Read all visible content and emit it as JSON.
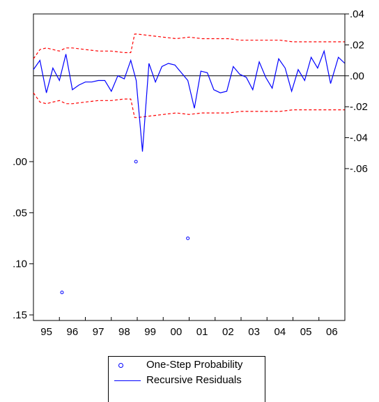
{
  "colors": {
    "residuals": "#0000ff",
    "bands": "#ff0000",
    "probability": "#0000ff",
    "zero_line": "#000000"
  },
  "legend": {
    "probability_label": "One-Step Probability",
    "residuals_label": "Recursive Residuals"
  },
  "chart_data": {
    "type": "line",
    "x_ticks": [
      "95",
      "96",
      "97",
      "98",
      "99",
      "00",
      "01",
      "02",
      "03",
      "04",
      "05",
      "06"
    ],
    "x_range": [
      1995.0,
      2007.0
    ],
    "right_axis": {
      "ticks": [
        ".04",
        ".02",
        ".00",
        "-.02",
        "-.04",
        "-.06"
      ],
      "values": [
        0.04,
        0.02,
        0.0,
        -0.02,
        -0.04,
        -0.06
      ],
      "range": [
        -0.06,
        0.04
      ]
    },
    "left_axis": {
      "ticks": [
        ".00",
        ".05",
        ".10",
        ".15"
      ],
      "values": [
        0.0,
        0.05,
        0.1,
        0.15
      ],
      "range": [
        0.0,
        0.15
      ]
    },
    "series": [
      {
        "name": "Recursive Residuals",
        "axis": "right",
        "style": "solid",
        "x": [
          1995.0,
          1995.25,
          1995.5,
          1995.75,
          1996.0,
          1996.25,
          1996.5,
          1996.75,
          1997.0,
          1997.25,
          1997.5,
          1997.75,
          1998.0,
          1998.25,
          1998.5,
          1998.75,
          1998.96,
          1999.2,
          1999.45,
          1999.7,
          1999.95,
          2000.2,
          2000.45,
          2000.7,
          2000.95,
          2001.2,
          2001.45,
          2001.7,
          2001.95,
          2002.2,
          2002.45,
          2002.7,
          2002.95,
          2003.2,
          2003.45,
          2003.7,
          2003.95,
          2004.2,
          2004.45,
          2004.7,
          2004.95,
          2005.2,
          2005.45,
          2005.7,
          2005.95,
          2006.2,
          2006.45,
          2006.75,
          2007.0
        ],
        "values": [
          0.004,
          0.01,
          -0.011,
          0.005,
          -0.003,
          0.014,
          -0.009,
          -0.006,
          -0.004,
          -0.004,
          -0.003,
          -0.003,
          -0.01,
          0.0,
          -0.002,
          0.01,
          -0.003,
          -0.049,
          0.008,
          -0.004,
          0.006,
          0.008,
          0.007,
          0.002,
          -0.003,
          -0.021,
          0.003,
          0.002,
          -0.009,
          -0.011,
          -0.01,
          0.006,
          0.001,
          -0.001,
          -0.009,
          0.009,
          -0.001,
          -0.008,
          0.011,
          0.005,
          -0.01,
          0.004,
          -0.003,
          0.012,
          0.005,
          0.016,
          -0.005,
          0.012,
          0.008
        ]
      },
      {
        "name": "",
        "axis": "right",
        "style": "dashed-band-upper",
        "x": [
          1995.0,
          1995.25,
          1995.5,
          1995.75,
          1996.0,
          1996.25,
          1996.5,
          1997.0,
          1997.5,
          1998.0,
          1998.5,
          1998.75,
          1998.9,
          1999.0,
          1999.5,
          2000.0,
          2000.5,
          2001.0,
          2001.5,
          2002.0,
          2002.5,
          2003.0,
          2003.5,
          2004.0,
          2004.5,
          2005.0,
          2005.5,
          2006.0,
          2006.5,
          2007.0
        ],
        "values": [
          0.011,
          0.017,
          0.018,
          0.017,
          0.016,
          0.018,
          0.018,
          0.017,
          0.016,
          0.016,
          0.015,
          0.015,
          0.027,
          0.027,
          0.026,
          0.025,
          0.024,
          0.025,
          0.024,
          0.024,
          0.024,
          0.023,
          0.023,
          0.023,
          0.023,
          0.022,
          0.022,
          0.022,
          0.022,
          0.022
        ]
      },
      {
        "name": "",
        "axis": "right",
        "style": "dashed-band-lower",
        "x": [
          1995.0,
          1995.25,
          1995.5,
          1995.75,
          1996.0,
          1996.25,
          1996.5,
          1997.0,
          1997.5,
          1998.0,
          1998.5,
          1998.75,
          1998.9,
          1999.0,
          1999.5,
          2000.0,
          2000.5,
          2001.0,
          2001.5,
          2002.0,
          2002.5,
          2003.0,
          2003.5,
          2004.0,
          2004.5,
          2005.0,
          2005.5,
          2006.0,
          2006.5,
          2007.0
        ],
        "values": [
          -0.011,
          -0.017,
          -0.018,
          -0.017,
          -0.016,
          -0.018,
          -0.018,
          -0.017,
          -0.016,
          -0.016,
          -0.015,
          -0.015,
          -0.027,
          -0.027,
          -0.026,
          -0.025,
          -0.024,
          -0.025,
          -0.024,
          -0.024,
          -0.024,
          -0.023,
          -0.023,
          -0.023,
          -0.023,
          -0.022,
          -0.022,
          -0.022,
          -0.022,
          -0.022
        ]
      },
      {
        "name": "One-Step Probability",
        "axis": "left",
        "style": "points",
        "x": [
          1996.1,
          1998.95,
          2000.95
        ],
        "values": [
          0.128,
          0.0,
          0.075
        ]
      }
    ],
    "zero_line": 0.0,
    "grid": false,
    "legend_position": "bottom-center"
  }
}
